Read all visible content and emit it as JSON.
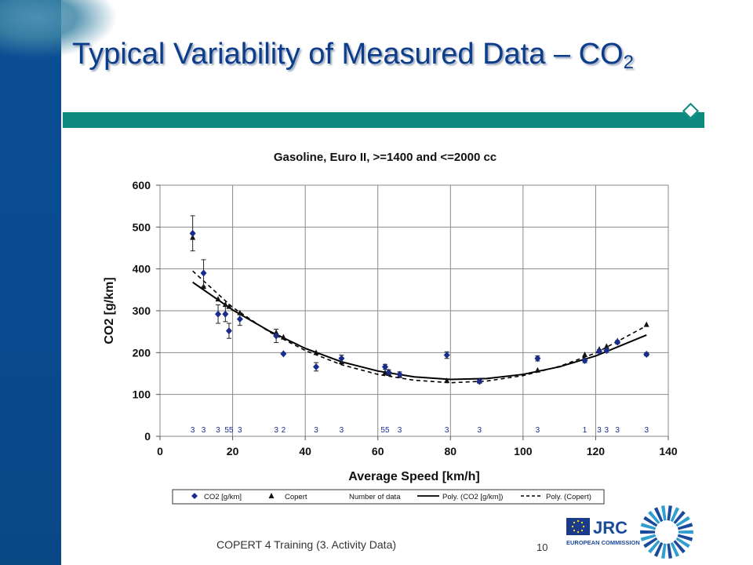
{
  "slide": {
    "title": "Typical Variability of Measured Data – CO",
    "title_subscript": "2",
    "footer": "COPERT 4 Training (3. Activity Data)",
    "page_number": "10",
    "logo": {
      "jrc": "JRC",
      "ec": "EUROPEAN COMMISSION"
    },
    "colors": {
      "title": "#0b3d8c",
      "band": "#0b4e94",
      "rule": "#0c8a80"
    }
  },
  "chart_data": {
    "type": "scatter",
    "title": "Gasoline, Euro II, >=1400 and <=2000 cc",
    "xlabel": "Average Speed [km/h]",
    "ylabel": "CO2 [g/km]",
    "xlim": [
      0,
      140
    ],
    "ylim": [
      0,
      600
    ],
    "xticks": [
      0,
      20,
      40,
      60,
      80,
      100,
      120,
      140
    ],
    "yticks": [
      0,
      100,
      200,
      300,
      400,
      500,
      600
    ],
    "grid": true,
    "legend_position": "bottom",
    "legend": [
      "CO2 [g/km]",
      "Copert",
      "Number of data",
      "Poly. (CO2 [g/km])",
      "Poly. (Copert)"
    ],
    "series": [
      {
        "name": "CO2 [g/km]",
        "marker": "diamond",
        "color": "#1a2c8c",
        "points": [
          {
            "x": 9,
            "y": 485,
            "err": 42
          },
          {
            "x": 12,
            "y": 390,
            "err": 32
          },
          {
            "x": 16,
            "y": 292,
            "err": 22
          },
          {
            "x": 18,
            "y": 292,
            "err": 18
          },
          {
            "x": 19,
            "y": 252,
            "err": 18
          },
          {
            "x": 22,
            "y": 280,
            "err": 15
          },
          {
            "x": 32,
            "y": 240,
            "err": 16
          },
          {
            "x": 34,
            "y": 197,
            "err": 0
          },
          {
            "x": 43,
            "y": 166,
            "err": 10
          },
          {
            "x": 50,
            "y": 186,
            "err": 8
          },
          {
            "x": 62,
            "y": 166,
            "err": 6
          },
          {
            "x": 63,
            "y": 153,
            "err": 6
          },
          {
            "x": 66,
            "y": 148,
            "err": 6
          },
          {
            "x": 79,
            "y": 194,
            "err": 8
          },
          {
            "x": 88,
            "y": 131,
            "err": 4
          },
          {
            "x": 104,
            "y": 186,
            "err": 6
          },
          {
            "x": 117,
            "y": 181,
            "err": 5
          },
          {
            "x": 121,
            "y": 203,
            "err": 4
          },
          {
            "x": 123,
            "y": 205,
            "err": 4
          },
          {
            "x": 126,
            "y": 225,
            "err": 4
          },
          {
            "x": 134,
            "y": 196,
            "err": 4
          }
        ]
      },
      {
        "name": "Copert",
        "marker": "triangle",
        "color": "#111111",
        "points": [
          {
            "x": 9,
            "y": 475
          },
          {
            "x": 12,
            "y": 358
          },
          {
            "x": 16,
            "y": 328
          },
          {
            "x": 18,
            "y": 315
          },
          {
            "x": 19,
            "y": 310
          },
          {
            "x": 22,
            "y": 295
          },
          {
            "x": 32,
            "y": 248
          },
          {
            "x": 34,
            "y": 237
          },
          {
            "x": 43,
            "y": 200
          },
          {
            "x": 50,
            "y": 178
          },
          {
            "x": 62,
            "y": 152
          },
          {
            "x": 63,
            "y": 150
          },
          {
            "x": 66,
            "y": 145
          },
          {
            "x": 79,
            "y": 133
          },
          {
            "x": 88,
            "y": 133
          },
          {
            "x": 104,
            "y": 158
          },
          {
            "x": 117,
            "y": 195
          },
          {
            "x": 121,
            "y": 208
          },
          {
            "x": 123,
            "y": 215
          },
          {
            "x": 126,
            "y": 228
          },
          {
            "x": 134,
            "y": 267
          }
        ]
      },
      {
        "name": "Poly. (CO2 [g/km])",
        "style": "solid",
        "color": "#000000",
        "points": [
          {
            "x": 9,
            "y": 368
          },
          {
            "x": 20,
            "y": 302
          },
          {
            "x": 30,
            "y": 252
          },
          {
            "x": 40,
            "y": 210
          },
          {
            "x": 50,
            "y": 178
          },
          {
            "x": 60,
            "y": 156
          },
          {
            "x": 70,
            "y": 142
          },
          {
            "x": 80,
            "y": 136
          },
          {
            "x": 90,
            "y": 138
          },
          {
            "x": 100,
            "y": 148
          },
          {
            "x": 110,
            "y": 166
          },
          {
            "x": 120,
            "y": 192
          },
          {
            "x": 134,
            "y": 242
          }
        ]
      },
      {
        "name": "Poly. (Copert)",
        "style": "dashed",
        "color": "#000000",
        "points": [
          {
            "x": 9,
            "y": 395
          },
          {
            "x": 20,
            "y": 308
          },
          {
            "x": 30,
            "y": 250
          },
          {
            "x": 40,
            "y": 205
          },
          {
            "x": 50,
            "y": 171
          },
          {
            "x": 60,
            "y": 148
          },
          {
            "x": 70,
            "y": 134
          },
          {
            "x": 80,
            "y": 128
          },
          {
            "x": 90,
            "y": 132
          },
          {
            "x": 100,
            "y": 145
          },
          {
            "x": 110,
            "y": 167
          },
          {
            "x": 120,
            "y": 199
          },
          {
            "x": 134,
            "y": 264
          }
        ]
      }
    ],
    "number_of_data": [
      {
        "x": 9,
        "label": "3"
      },
      {
        "x": 12,
        "label": "3"
      },
      {
        "x": 16,
        "label": "3"
      },
      {
        "x": 19,
        "label": "55"
      },
      {
        "x": 22,
        "label": "3"
      },
      {
        "x": 32,
        "label": "3"
      },
      {
        "x": 34,
        "label": "2"
      },
      {
        "x": 43,
        "label": "3"
      },
      {
        "x": 50,
        "label": "3"
      },
      {
        "x": 62,
        "label": "55"
      },
      {
        "x": 66,
        "label": "3"
      },
      {
        "x": 79,
        "label": "3"
      },
      {
        "x": 88,
        "label": "3"
      },
      {
        "x": 104,
        "label": "3"
      },
      {
        "x": 117,
        "label": "1"
      },
      {
        "x": 121,
        "label": "3"
      },
      {
        "x": 123,
        "label": "3"
      },
      {
        "x": 126,
        "label": "3"
      },
      {
        "x": 134,
        "label": "3"
      }
    ]
  }
}
